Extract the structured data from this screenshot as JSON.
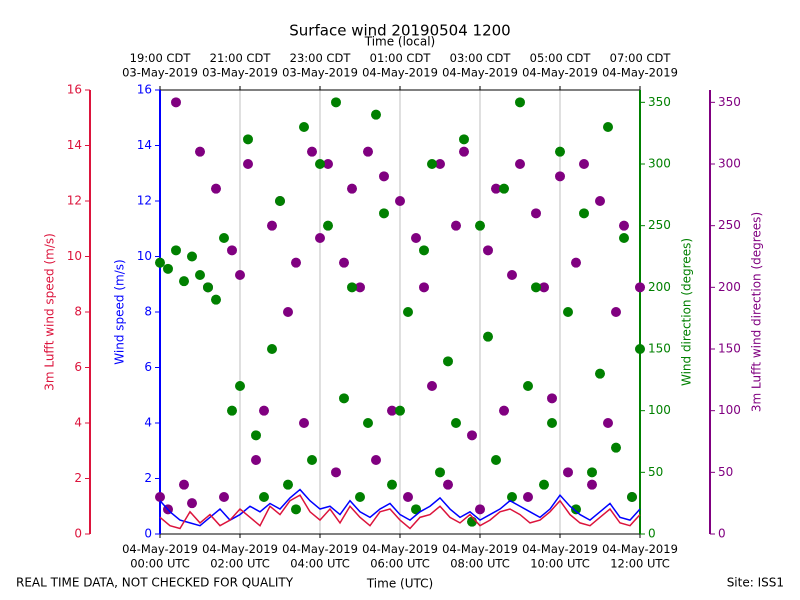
{
  "chart_data": {
    "type": "line",
    "title": "Surface wind 20190504 1200",
    "xlabel": "Time (UTC)",
    "x2label": "Time (local)",
    "footer_left": "REAL TIME DATA, NOT CHECKED FOR QUALITY",
    "footer_right": "Site: ISS1",
    "xlim": [
      0,
      12
    ],
    "xticks": [
      {
        "value": 0,
        "label": "04-May-2019\n00:00 UTC"
      },
      {
        "value": 2,
        "label": "04-May-2019\n02:00 UTC"
      },
      {
        "value": 4,
        "label": "04-May-2019\n04:00 UTC"
      },
      {
        "value": 6,
        "label": "04-May-2019\n06:00 UTC"
      },
      {
        "value": 8,
        "label": "04-May-2019\n08:00 UTC"
      },
      {
        "value": 10,
        "label": "04-May-2019\n10:00 UTC"
      },
      {
        "value": 12,
        "label": "04-May-2019\n12:00 UTC"
      }
    ],
    "x2ticks": [
      {
        "value": 0,
        "label": "19:00 CDT\n03-May-2019"
      },
      {
        "value": 2,
        "label": "21:00 CDT\n03-May-2019"
      },
      {
        "value": 4,
        "label": "23:00 CDT\n03-May-2019"
      },
      {
        "value": 6,
        "label": "01:00 CDT\n04-May-2019"
      },
      {
        "value": 8,
        "label": "03:00 CDT\n04-May-2019"
      },
      {
        "value": 10,
        "label": "05:00 CDT\n04-May-2019"
      },
      {
        "value": 12,
        "label": "07:00 CDT\n04-May-2019"
      }
    ],
    "grid": true,
    "axes": [
      {
        "label": "3m Lufft wind speed (m/s)",
        "color": "#dc143c",
        "side": "left",
        "lim": [
          0,
          16
        ],
        "ticks": [
          0,
          2,
          4,
          6,
          8,
          10,
          12,
          14,
          16
        ]
      },
      {
        "label": "Wind speed (m/s)",
        "color": "#0000ff",
        "side": "left",
        "lim": [
          0,
          16
        ],
        "ticks": [
          0,
          2,
          4,
          6,
          8,
          10,
          12,
          14,
          16
        ]
      },
      {
        "label": "Wind direction (degrees)",
        "color": "#008000",
        "side": "right",
        "lim": [
          0,
          360
        ],
        "ticks": [
          0,
          50,
          100,
          150,
          200,
          250,
          300,
          350
        ]
      },
      {
        "label": "3m Lufft wind direction (degrees)",
        "color": "#800080",
        "side": "right",
        "lim": [
          0,
          360
        ],
        "ticks": [
          0,
          50,
          100,
          150,
          200,
          250,
          300,
          350
        ]
      }
    ],
    "series": [
      {
        "type": "scatter",
        "axis": 3,
        "color": "#800080",
        "x": [
          0,
          0.2,
          0.4,
          0.6,
          0.8,
          1,
          1.2,
          1.4,
          1.6,
          1.8,
          2,
          2.2,
          2.4,
          2.6,
          2.8,
          3,
          3.2,
          3.4,
          3.6,
          3.8,
          4,
          4.2,
          4.4,
          4.6,
          4.8,
          5,
          5.2,
          5.4,
          5.6,
          5.8,
          6,
          6.2,
          6.4,
          6.6,
          6.8,
          7,
          7.2,
          7.4,
          7.6,
          7.8,
          8,
          8.2,
          8.4,
          8.6,
          8.8,
          9,
          9.2,
          9.4,
          9.6,
          9.8,
          10,
          10.2,
          10.4,
          10.6,
          10.8,
          11,
          11.2,
          11.4,
          11.6,
          11.8,
          12
        ],
        "values": [
          30,
          20,
          350,
          40,
          25,
          310,
          200,
          280,
          30,
          230,
          210,
          300,
          60,
          100,
          250,
          270,
          180,
          220,
          90,
          310,
          240,
          300,
          50,
          220,
          280,
          200,
          310,
          60,
          290,
          100,
          270,
          30,
          240,
          200,
          120,
          300,
          40,
          250,
          310,
          80,
          20,
          230,
          280,
          100,
          210,
          300,
          30,
          260,
          200,
          110,
          290,
          50,
          220,
          300,
          40,
          270,
          90,
          180,
          250,
          30,
          200
        ]
      },
      {
        "type": "scatter",
        "axis": 2,
        "color": "#008000",
        "x": [
          0,
          0.2,
          0.4,
          0.6,
          0.8,
          1,
          1.2,
          1.4,
          1.6,
          1.8,
          2,
          2.2,
          2.4,
          2.6,
          2.8,
          3,
          3.2,
          3.4,
          3.6,
          3.8,
          4,
          4.2,
          4.4,
          4.6,
          4.8,
          5,
          5.2,
          5.4,
          5.6,
          5.8,
          6,
          6.2,
          6.4,
          6.6,
          6.8,
          7,
          7.2,
          7.4,
          7.6,
          7.8,
          8,
          8.2,
          8.4,
          8.6,
          8.8,
          9,
          9.2,
          9.4,
          9.6,
          9.8,
          10,
          10.2,
          10.4,
          10.6,
          10.8,
          11,
          11.2,
          11.4,
          11.6,
          11.8,
          12
        ],
        "values": [
          220,
          215,
          230,
          205,
          225,
          210,
          200,
          190,
          240,
          100,
          120,
          320,
          80,
          30,
          150,
          270,
          40,
          20,
          330,
          60,
          300,
          250,
          350,
          110,
          200,
          30,
          90,
          340,
          260,
          40,
          100,
          180,
          20,
          230,
          300,
          50,
          140,
          90,
          320,
          10,
          250,
          160,
          60,
          280,
          30,
          350,
          120,
          200,
          40,
          90,
          310,
          180,
          20,
          260,
          50,
          130,
          330,
          70,
          240,
          30,
          150
        ]
      },
      {
        "type": "line",
        "axis": 1,
        "color": "#0000ff",
        "x": [
          0,
          0.25,
          0.5,
          0.75,
          1,
          1.25,
          1.5,
          1.75,
          2,
          2.25,
          2.5,
          2.75,
          3,
          3.25,
          3.5,
          3.75,
          4,
          4.25,
          4.5,
          4.75,
          5,
          5.25,
          5.5,
          5.75,
          6,
          6.25,
          6.5,
          6.75,
          7,
          7.25,
          7.5,
          7.75,
          8,
          8.25,
          8.5,
          8.75,
          9,
          9.25,
          9.5,
          9.75,
          10,
          10.25,
          10.5,
          10.75,
          11,
          11.25,
          11.5,
          11.75,
          12
        ],
        "values": [
          1.2,
          0.8,
          0.5,
          0.4,
          0.3,
          0.6,
          0.9,
          0.5,
          0.7,
          1.0,
          0.8,
          1.1,
          0.9,
          1.3,
          1.6,
          1.2,
          0.9,
          1.0,
          0.7,
          1.2,
          0.8,
          0.6,
          0.9,
          1.1,
          0.7,
          0.5,
          0.8,
          1.0,
          1.3,
          0.9,
          0.6,
          0.8,
          0.5,
          0.7,
          0.9,
          1.2,
          1.0,
          0.8,
          0.6,
          0.9,
          1.4,
          1.0,
          0.7,
          0.5,
          0.8,
          1.1,
          0.6,
          0.5,
          0.9
        ]
      },
      {
        "type": "line",
        "axis": 0,
        "color": "#dc143c",
        "x": [
          0,
          0.25,
          0.5,
          0.75,
          1,
          1.25,
          1.5,
          1.75,
          2,
          2.25,
          2.5,
          2.75,
          3,
          3.25,
          3.5,
          3.75,
          4,
          4.25,
          4.5,
          4.75,
          5,
          5.25,
          5.5,
          5.75,
          6,
          6.25,
          6.5,
          6.75,
          7,
          7.25,
          7.5,
          7.75,
          8,
          8.25,
          8.5,
          8.75,
          9,
          9.25,
          9.5,
          9.75,
          10,
          10.25,
          10.5,
          10.75,
          11,
          11.25,
          11.5,
          11.75,
          12
        ],
        "values": [
          0.6,
          0.3,
          0.2,
          0.8,
          0.4,
          0.7,
          0.3,
          0.5,
          0.9,
          0.6,
          0.3,
          1.0,
          0.7,
          1.2,
          1.4,
          0.8,
          0.5,
          0.9,
          0.4,
          1.0,
          0.6,
          0.3,
          0.8,
          0.9,
          0.5,
          0.2,
          0.6,
          0.7,
          1.0,
          0.6,
          0.4,
          0.7,
          0.3,
          0.5,
          0.8,
          0.9,
          0.7,
          0.4,
          0.5,
          0.8,
          1.2,
          0.7,
          0.4,
          0.3,
          0.6,
          0.9,
          0.4,
          0.3,
          0.7
        ]
      }
    ]
  }
}
